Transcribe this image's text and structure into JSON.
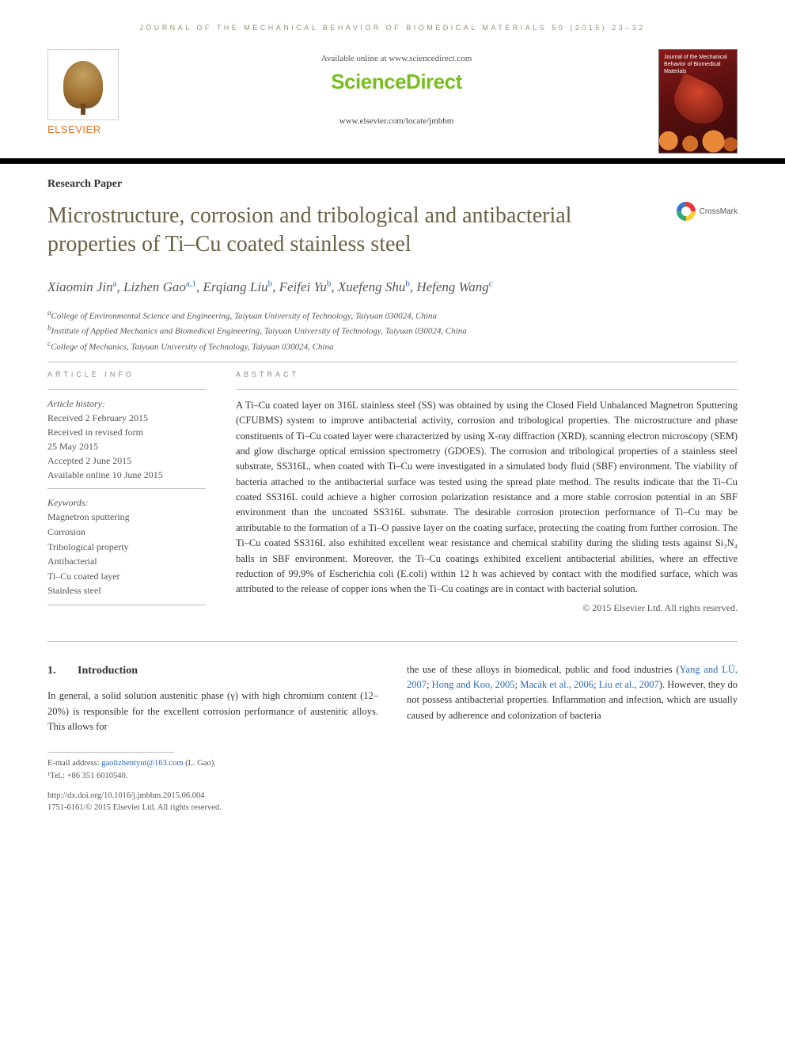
{
  "running_head": "JOURNAL OF THE MECHANICAL BEHAVIOR OF BIOMEDICAL MATERIALS 50 (2015) 23–32",
  "header": {
    "available_text": "Available online at www.sciencedirect.com",
    "sciencedirect_label": "ScienceDirect",
    "journal_url": "www.elsevier.com/locate/jmbbm",
    "elsevier_label": "ELSEVIER",
    "cover_title": "Journal of the Mechanical Behavior of Biomedical Materials",
    "crossmark_label": "CrossMark"
  },
  "paper_type": "Research Paper",
  "title": "Microstructure, corrosion and tribological and antibacterial properties of Ti–Cu coated stainless steel",
  "authors_html": "Xiaomin Jin<sup>a</sup>, Lizhen Gao<sup>a,1</sup>, Erqiang Liu<sup>b</sup>, Feifei Yu<sup>b</sup>, Xuefeng Shu<sup>b</sup>, Hefeng Wang<sup>c</sup>",
  "affiliations": [
    {
      "mark": "a",
      "text": "College of Environmental Science and Engineering, Taiyuan University of Technology, Taiyuan 030024, China"
    },
    {
      "mark": "b",
      "text": "Institute of Applied Mechanics and Biomedical Engineering, Taiyuan University of Technology, Taiyuan 030024, China"
    },
    {
      "mark": "c",
      "text": "College of Mechanics, Taiyuan University of Technology, Taiyuan 030024, China"
    }
  ],
  "article_info_label": "ARTICLE INFO",
  "abstract_label": "ABSTRACT",
  "history": {
    "label": "Article history:",
    "lines": [
      "Received 2 February 2015",
      "Received in revised form",
      "25 May 2015",
      "Accepted 2 June 2015",
      "Available online 10 June 2015"
    ]
  },
  "keywords": {
    "label": "Keywords:",
    "items": [
      "Magnetron sputtering",
      "Corrosion",
      "Tribological property",
      "Antibacterial",
      "Ti–Cu coated layer",
      "Stainless steel"
    ]
  },
  "abstract_text": "A Ti–Cu coated layer on 316L stainless steel (SS) was obtained by using the Closed Field Unbalanced Magnetron Sputtering (CFUBMS) system to improve antibacterial activity, corrosion and tribological properties. The microstructure and phase constituents of Ti–Cu coated layer were characterized by using X-ray diffraction (XRD), scanning electron microscopy (SEM) and glow discharge optical emission spectrometry (GDOES). The corrosion and tribological properties of a stainless steel substrate, SS316L, when coated with Ti–Cu were investigated in a simulated body fluid (SBF) environment. The viability of bacteria attached to the antibacterial surface was tested using the spread plate method. The results indicate that the Ti–Cu coated SS316L could achieve a higher corrosion polarization resistance and a more stable corrosion potential in an SBF environment than the uncoated SS316L substrate. The desirable corrosion protection performance of Ti–Cu may be attributable to the formation of a Ti–O passive layer on the coating surface, protecting the coating from further corrosion. The Ti–Cu coated SS316L also exhibited excellent wear resistance and chemical stability during the sliding tests against Si₃N₄ balls in SBF environment. Moreover, the Ti–Cu coatings exhibited excellent antibacterial abilities, where an effective reduction of 99.9% of Escherichia coli (E.coli) within 12 h was achieved by contact with the modified surface, which was attributed to the release of copper ions when the Ti–Cu coatings are in contact with bacterial solution.",
  "copyright_line": "© 2015 Elsevier Ltd. All rights reserved.",
  "section1": {
    "num": "1.",
    "title": "Introduction",
    "col1": "In general, a solid solution austenitic phase (γ) with high chromium content (12–20%) is responsible for the excellent corrosion performance of austenitic alloys. This allows for",
    "col2_pre": "the use of these alloys in biomedical, public and food industries (",
    "col2_cite1": "Yang and LÜ, 2007",
    "col2_sep1": "; ",
    "col2_cite2": "Hong and Koo, 2005",
    "col2_sep2": "; ",
    "col2_cite3": "Macák et al., 2006",
    "col2_sep3": "; ",
    "col2_cite4": "Liu et al., 2007",
    "col2_post": "). However, they do not possess antibacterial properties. Inflammation and infection, which are usually caused by adherence and colonization of bacteria"
  },
  "footnotes": {
    "email_label": "E-mail address: ",
    "email": "gaolizhentyut@163.com",
    "email_author": " (L. Gao).",
    "tel_label": "¹Tel.: +86 351 6010540."
  },
  "doi": {
    "url": "http://dx.doi.org/10.1016/j.jmbbm.2015.06.004",
    "issn_line": "1751-6161/© 2015 Elsevier Ltd. All rights reserved."
  },
  "colors": {
    "accent_olive": "#9a8f6a",
    "title_olive": "#6b6146",
    "elsevier_orange": "#e9711c",
    "scidirect_green": "#78be20",
    "link_blue": "#2a6ab5",
    "rule_grey": "#b8b8b8",
    "text_grey": "#555555",
    "black": "#000000",
    "bg": "#ffffff"
  }
}
